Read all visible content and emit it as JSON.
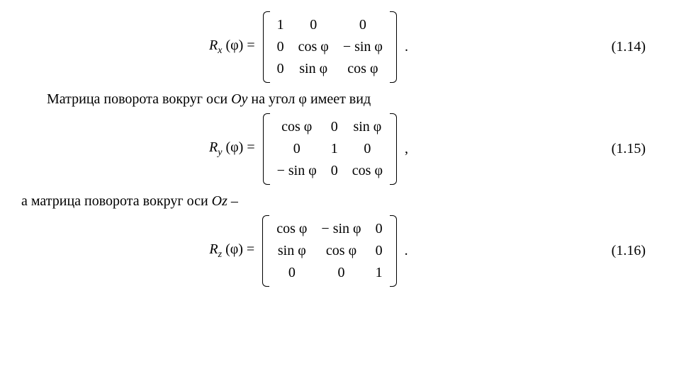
{
  "eq1": {
    "lhs": "R",
    "sub": "x",
    "arg": "(φ) =",
    "rows": [
      [
        "1",
        "0",
        "0"
      ],
      [
        "0",
        "cos φ",
        "− sin φ"
      ],
      [
        "0",
        "sin φ",
        "cos φ"
      ]
    ],
    "punct": ".",
    "num": "(1.14)"
  },
  "para1": {
    "t1": "Матрица поворота вокруг оси ",
    "axis": "Oy",
    "t2": " на угол ",
    "angle": "φ",
    "t3": " имеет вид"
  },
  "eq2": {
    "lhs": "R",
    "sub": "y",
    "arg": "(φ) =",
    "rows": [
      [
        "cos φ",
        "0",
        "sin φ"
      ],
      [
        "0",
        "1",
        "0"
      ],
      [
        "− sin φ",
        "0",
        "cos φ"
      ]
    ],
    "punct": ",",
    "num": "(1.15)"
  },
  "para2": {
    "t1": "а матрица поворота вокруг оси ",
    "axis": "Oz",
    "t2": " –"
  },
  "eq3": {
    "lhs": "R",
    "sub": "z",
    "arg": "(φ) =",
    "rows": [
      [
        "cos φ",
        "− sin φ",
        "0"
      ],
      [
        "sin φ",
        "cos φ",
        "0"
      ],
      [
        "0",
        "0",
        "1"
      ]
    ],
    "punct": ".",
    "num": "(1.16)"
  }
}
